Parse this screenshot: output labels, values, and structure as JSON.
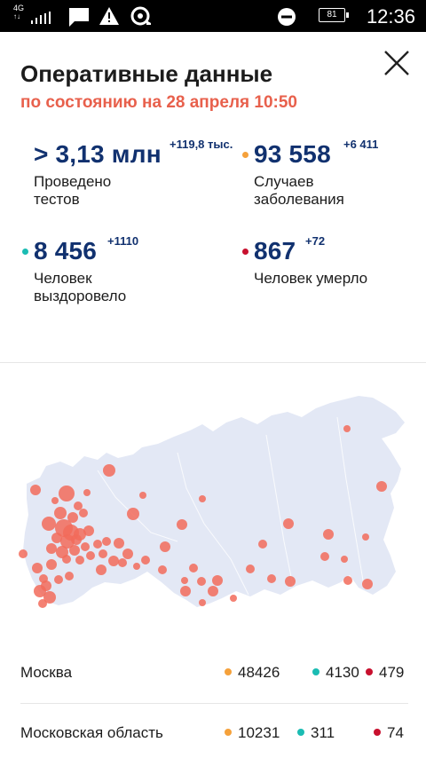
{
  "status_bar": {
    "network": "4G",
    "battery": "81",
    "time": "12:36",
    "icons": [
      "signal-icon",
      "message-icon",
      "warning-icon",
      "disc-icon",
      "do-not-disturb-icon",
      "battery-icon"
    ]
  },
  "header": {
    "title": "Оперативные данные",
    "subtitle": "по состоянию на 28 апреля 10:50"
  },
  "colors": {
    "accent": "#e8604c",
    "number": "#11316f",
    "cases": "#f5a13b",
    "recovered": "#1bbcb3",
    "deaths": "#c8102e",
    "map_land": "#e3e8f5",
    "map_bubble": "#f26b5b"
  },
  "stats": {
    "tests": {
      "value": "> 3,13 млн",
      "delta": "+119,8 тыс.",
      "label": "Проведено тестов"
    },
    "cases": {
      "value": "93 558",
      "delta": "+6 411",
      "label": "Случаев заболевания"
    },
    "recovered": {
      "value": "8 456",
      "delta": "+1110",
      "label": "Человек выздоровело"
    },
    "deaths": {
      "value": "867",
      "delta": "+72",
      "label": "Человек умерло"
    }
  },
  "regions": [
    {
      "name": "Москва",
      "cases": "48426",
      "recovered": "4130",
      "deaths": "479"
    },
    {
      "name": "Московская область",
      "cases": "10231",
      "recovered": "311",
      "deaths": "74"
    }
  ]
}
